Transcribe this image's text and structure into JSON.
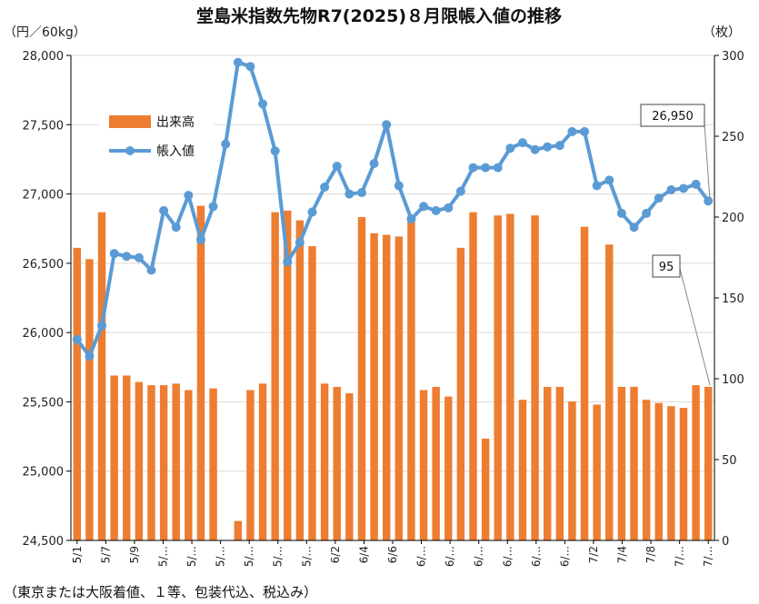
{
  "chart_data": {
    "type": "bar+line",
    "title": "堂島米指数先物R7(2025)８月限帳入値の推移",
    "left_unit": "（円／60kg）",
    "right_unit": "（枚）",
    "footnote": "（東京または大阪着値、１等、包装代込、税込み）",
    "left_axis": {
      "min": 24500,
      "max": 28000,
      "ticks": [
        "24,500",
        "25,000",
        "25,500",
        "26,000",
        "26,500",
        "27,000",
        "27,500",
        "28,000"
      ]
    },
    "right_axis": {
      "min": 0,
      "max": 300,
      "ticks": [
        "0",
        "50",
        "100",
        "150",
        "200",
        "250",
        "300"
      ]
    },
    "x_tick_labels": [
      "5/1",
      "5/7",
      "5/9",
      "5/...",
      "5/...",
      "5/...",
      "5/...",
      "5/...",
      "5/...",
      "6/2",
      "6/4",
      "6/6",
      "6/...",
      "6/...",
      "6/...",
      "6/...",
      "6/...",
      "6/...",
      "7/2",
      "7/4",
      "7/8",
      "7/...",
      "7/..."
    ],
    "legend": {
      "volume": "出来高",
      "settle": "帳入値"
    },
    "colors": {
      "bar": "#ED7D31",
      "line": "#5B9BD5",
      "marker": "#5B9BD5",
      "axis": "#000000",
      "grid": "#D9D9D9"
    },
    "volume": [
      181,
      174,
      203,
      102,
      102,
      98,
      96,
      96,
      97,
      93,
      207,
      94,
      null,
      12,
      93,
      97,
      203,
      204,
      198,
      182,
      97,
      95,
      91,
      200,
      190,
      189,
      188,
      200,
      93,
      95,
      89,
      181,
      203,
      63,
      201,
      202,
      87,
      201,
      95,
      95,
      86,
      194,
      84,
      183,
      95,
      95,
      87,
      85,
      83,
      82,
      96,
      95
    ],
    "settle": [
      25950,
      25830,
      26050,
      26570,
      26550,
      26540,
      26450,
      26880,
      26760,
      26990,
      26670,
      26910,
      27360,
      27950,
      27920,
      27650,
      27310,
      26510,
      26650,
      26870,
      27050,
      27200,
      27000,
      27010,
      27220,
      27500,
      27060,
      26820,
      26910,
      26880,
      26900,
      27020,
      27190,
      27190,
      27190,
      27330,
      27370,
      27320,
      27340,
      27350,
      27450,
      27450,
      27060,
      27100,
      26860,
      26760,
      26860,
      26970,
      27030,
      27040,
      27070,
      26950
    ],
    "callouts": {
      "settle_last": "26,950",
      "volume_last": "95"
    }
  }
}
